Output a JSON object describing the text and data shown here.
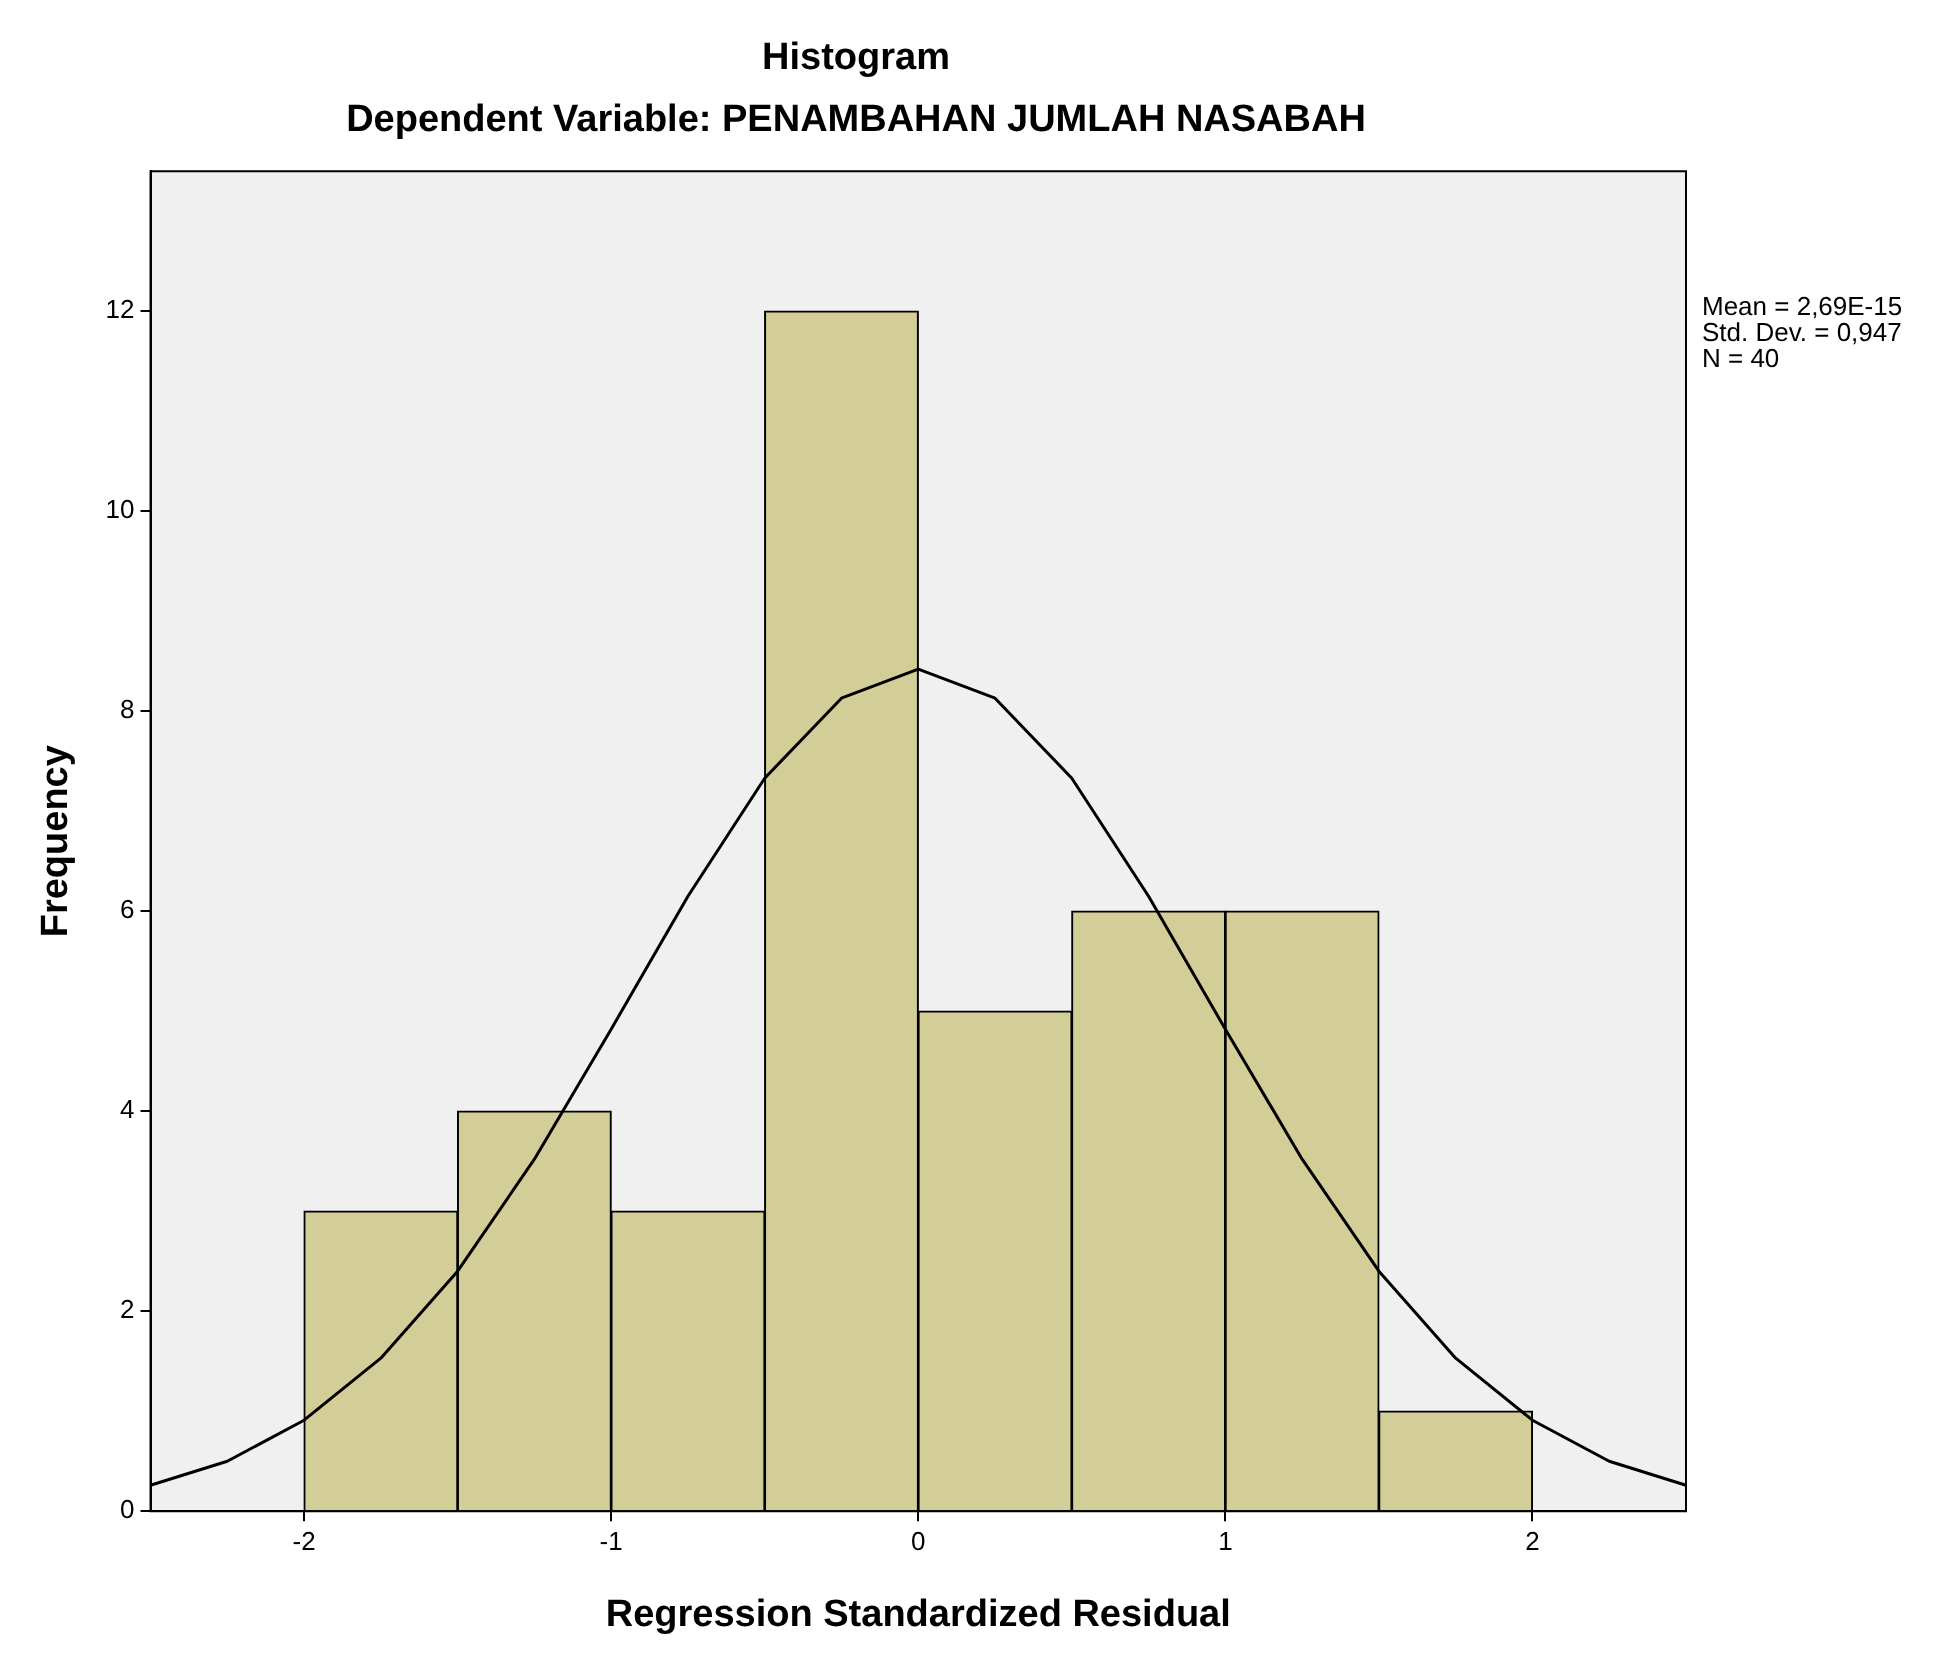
{
  "chart_data": {
    "type": "histogram",
    "title": "Histogram",
    "subtitle": "Dependent Variable: PENAMBAHAN JUMLAH NASABAH",
    "xlabel": "Regression Standardized Residual",
    "ylabel": "Frequency",
    "bins": [
      -2,
      -1.5,
      -1,
      -0.5,
      0,
      0.5,
      1,
      1.5,
      2
    ],
    "values": [
      3,
      4,
      3,
      12,
      5,
      6,
      6,
      1
    ],
    "color": "#d3ce97",
    "series": [
      {
        "type": "line",
        "color": "#000000",
        "x": [
          -2.5,
          -2.25,
          -2,
          -1.75,
          -1.5,
          -1.25,
          -1,
          -0.75,
          -0.5,
          -0.25,
          0,
          0.25,
          0.5,
          0.75,
          1,
          1.25,
          1.5,
          1.75,
          2,
          2.25,
          2.5
        ],
        "values": [
          0.26,
          0.5,
          0.91,
          1.53,
          2.4,
          3.52,
          4.82,
          6.15,
          7.33,
          8.13,
          8.42,
          8.13,
          7.33,
          6.15,
          4.82,
          3.52,
          2.4,
          1.53,
          0.91,
          0.5,
          0.26
        ]
      }
    ],
    "xlim": [
      -2.5,
      2.5
    ],
    "xticks": [
      -2,
      -1,
      0,
      1,
      2
    ],
    "ylim": [
      0,
      13.4
    ],
    "yticks": [
      0,
      2,
      4,
      6,
      8,
      10,
      12
    ],
    "annotations": [
      "Mean = 2,69E-15",
      "Std. Dev. = 0,947",
      "N = 40"
    ],
    "grid": false,
    "legend": false,
    "marker": "none",
    "line_style": "solid"
  }
}
